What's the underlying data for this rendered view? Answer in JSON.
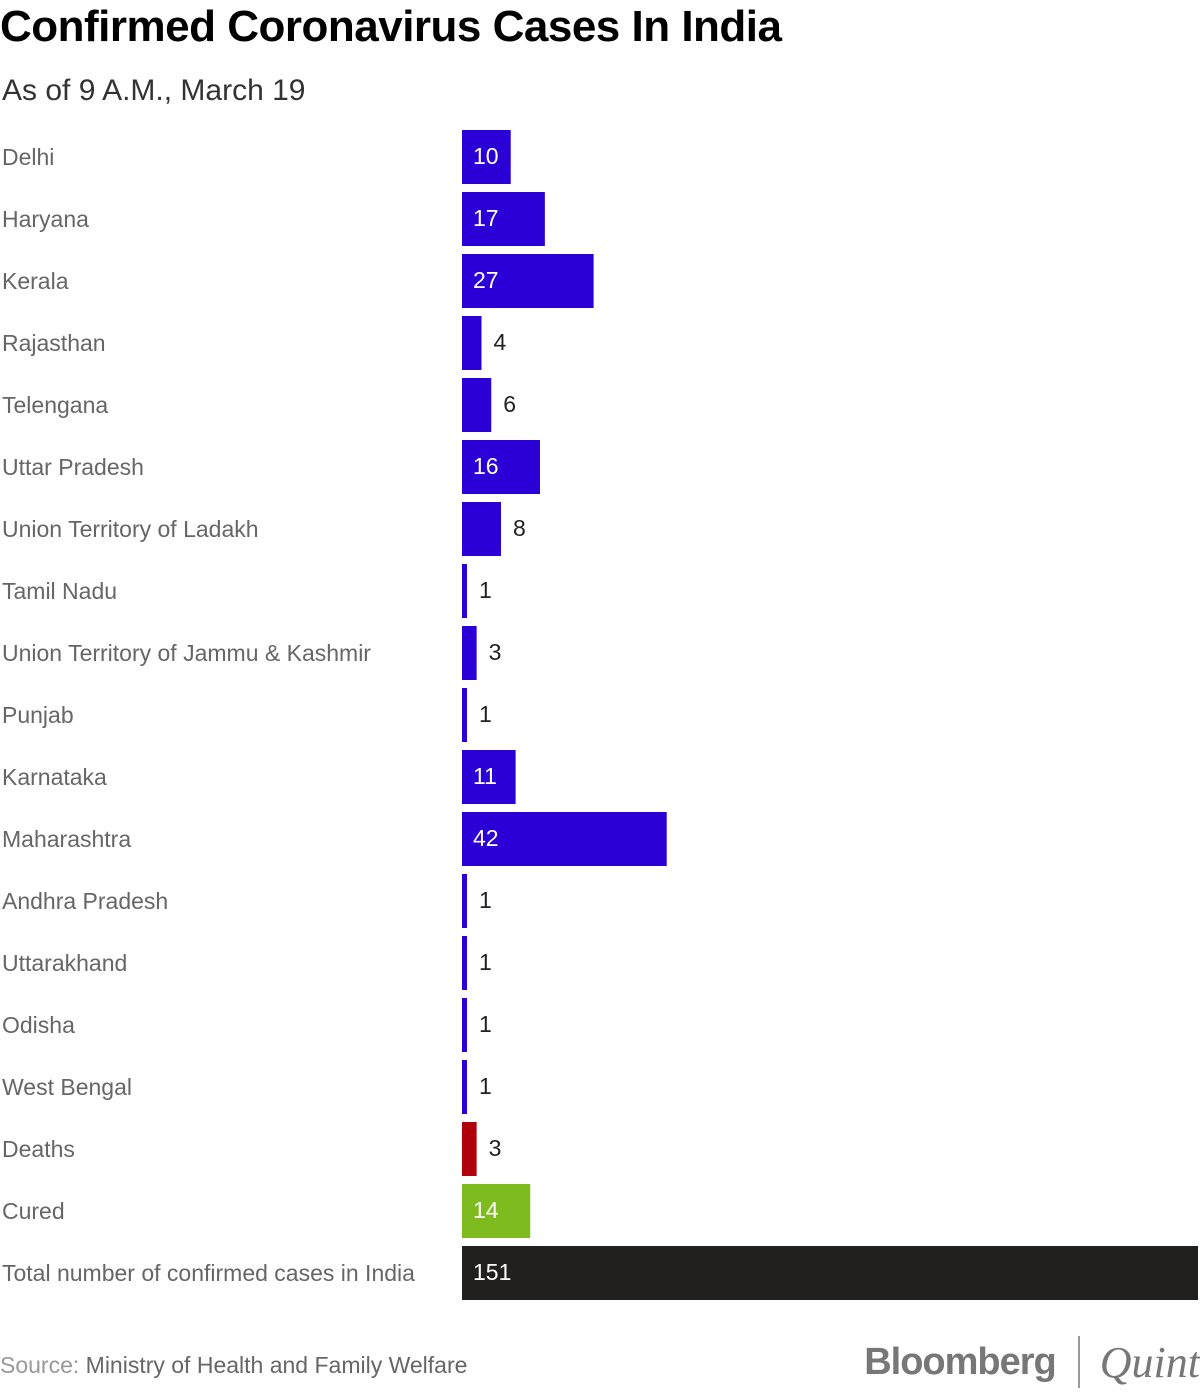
{
  "header": {
    "title": "Confirmed Coronavirus Cases In India",
    "subtitle": "As of 9 A.M., March 19"
  },
  "footer": {
    "source_prefix": "Source:",
    "source_text": "Ministry of Health and Family Welfare",
    "brand_primary": "Bloomberg",
    "brand_secondary": "Quint"
  },
  "colors": {
    "state": "#2a00d6",
    "deaths": "#b0000b",
    "cured": "#7dbb1e",
    "total": "#22201e"
  },
  "chart_data": {
    "type": "bar",
    "orientation": "horizontal",
    "title": "Confirmed Coronavirus Cases In India",
    "subtitle": "As of 9 A.M., March 19",
    "categories": [
      "Delhi",
      "Haryana",
      "Kerala",
      "Rajasthan",
      "Telengana",
      "Uttar Pradesh",
      "Union Territory of Ladakh",
      "Tamil Nadu",
      "Union Territory of Jammu & Kashmir",
      "Punjab",
      "Karnataka",
      "Maharashtra",
      "Andhra Pradesh",
      "Uttarakhand",
      "Odisha",
      "West Bengal",
      "Deaths",
      "Cured",
      "Total number of confirmed cases in India"
    ],
    "values": [
      10,
      17,
      27,
      4,
      6,
      16,
      8,
      1,
      3,
      1,
      11,
      42,
      1,
      1,
      1,
      1,
      3,
      14,
      151
    ],
    "bar_color_keys": [
      "state",
      "state",
      "state",
      "state",
      "state",
      "state",
      "state",
      "state",
      "state",
      "state",
      "state",
      "state",
      "state",
      "state",
      "state",
      "state",
      "deaths",
      "cured",
      "total"
    ],
    "xlim": [
      0,
      151
    ],
    "grid": false,
    "legend": "none",
    "data_labels": true,
    "source": "Source: Ministry of Health and Family Welfare"
  }
}
